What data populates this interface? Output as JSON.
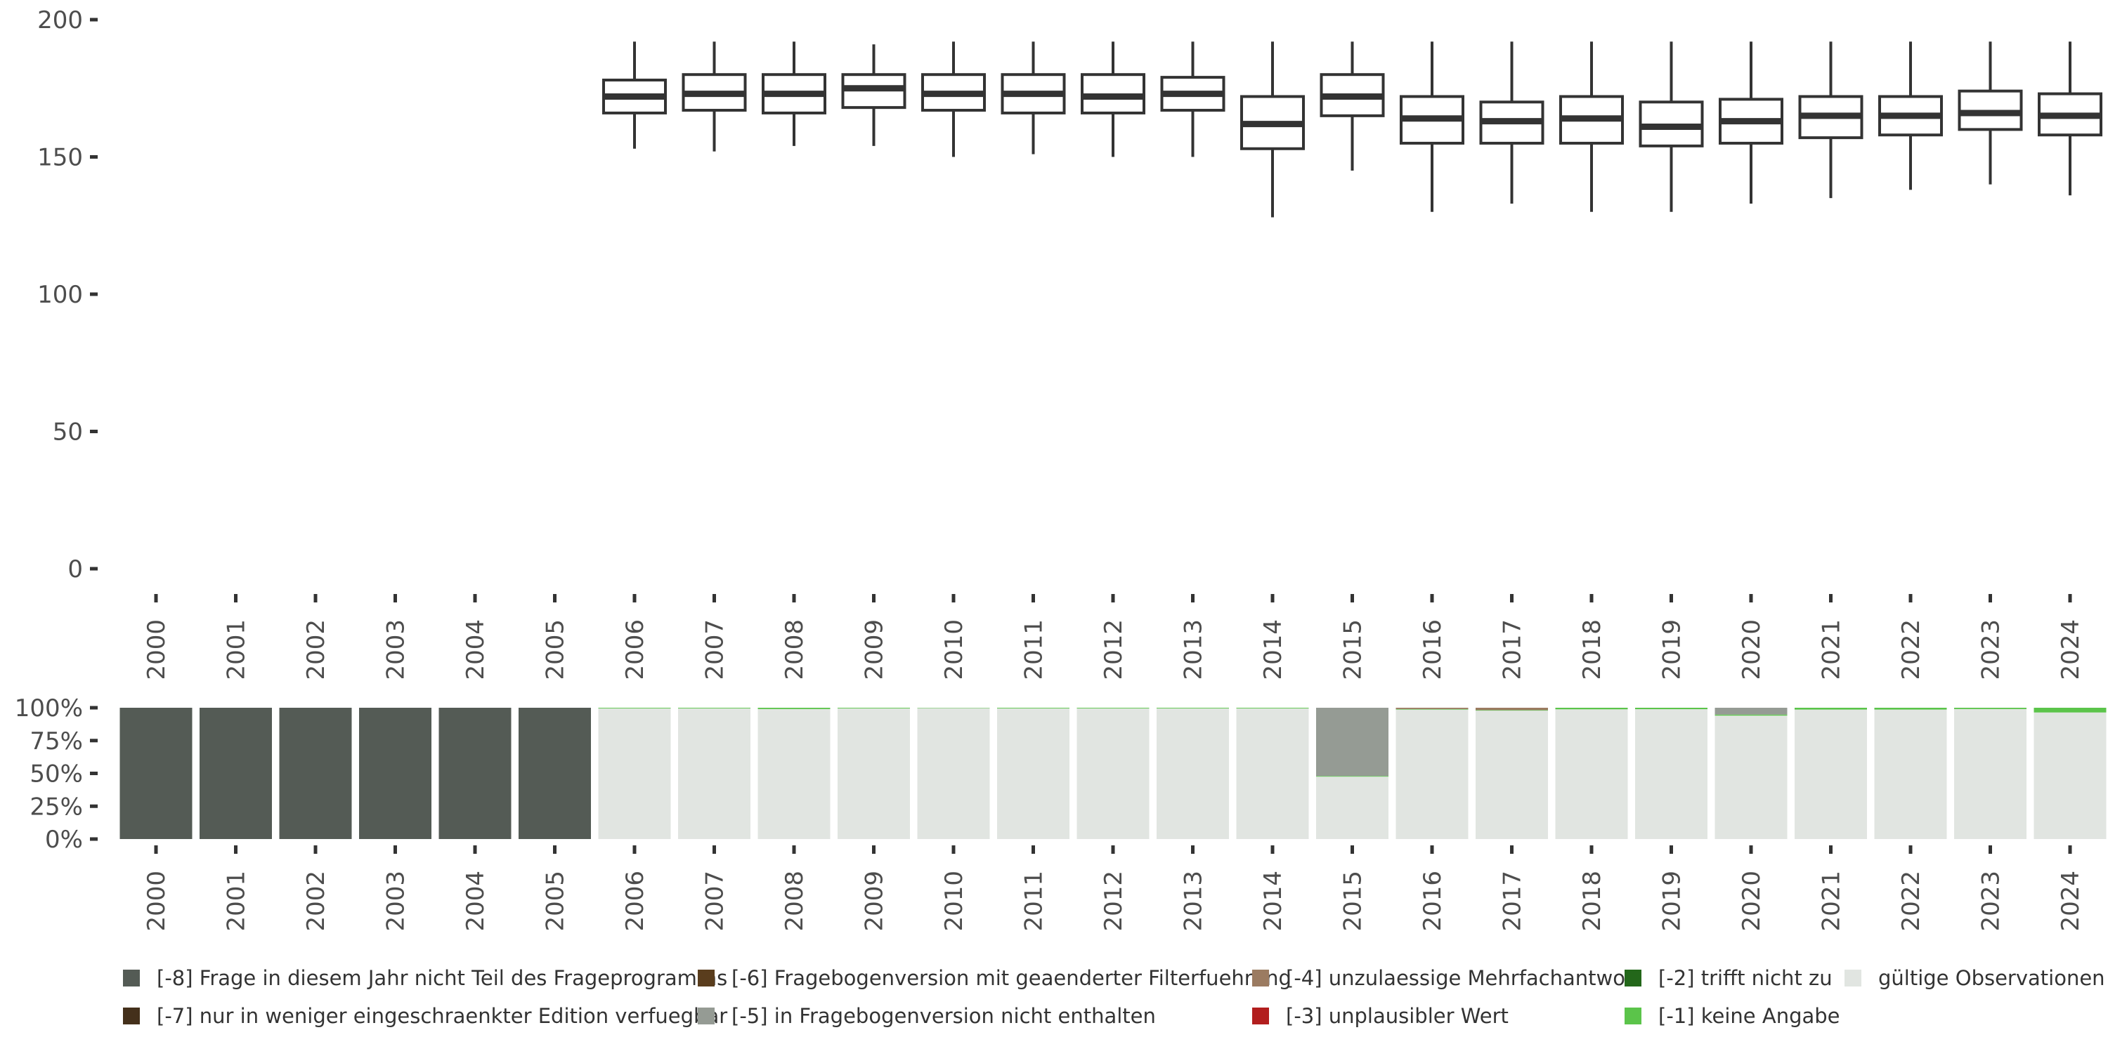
{
  "chart_data": [
    {
      "type": "boxplot",
      "title": "",
      "xlabel": "",
      "ylabel": "",
      "ylim": [
        0,
        200
      ],
      "yticks": [
        0,
        50,
        100,
        150,
        200
      ],
      "categories": [
        "2000",
        "2001",
        "2002",
        "2003",
        "2004",
        "2005",
        "2006",
        "2007",
        "2008",
        "2009",
        "2010",
        "2011",
        "2012",
        "2013",
        "2014",
        "2015",
        "2016",
        "2017",
        "2018",
        "2019",
        "2020",
        "2021",
        "2022",
        "2023",
        "2024"
      ],
      "boxes": [
        {
          "year": "2006",
          "whisker_low": 153,
          "q1": 166,
          "median": 172,
          "q3": 178,
          "whisker_high": 192
        },
        {
          "year": "2007",
          "whisker_low": 152,
          "q1": 167,
          "median": 173,
          "q3": 180,
          "whisker_high": 192
        },
        {
          "year": "2008",
          "whisker_low": 154,
          "q1": 166,
          "median": 173,
          "q3": 180,
          "whisker_high": 192
        },
        {
          "year": "2009",
          "whisker_low": 154,
          "q1": 168,
          "median": 175,
          "q3": 180,
          "whisker_high": 191
        },
        {
          "year": "2010",
          "whisker_low": 150,
          "q1": 167,
          "median": 173,
          "q3": 180,
          "whisker_high": 192
        },
        {
          "year": "2011",
          "whisker_low": 151,
          "q1": 166,
          "median": 173,
          "q3": 180,
          "whisker_high": 192
        },
        {
          "year": "2012",
          "whisker_low": 150,
          "q1": 166,
          "median": 172,
          "q3": 180,
          "whisker_high": 192
        },
        {
          "year": "2013",
          "whisker_low": 150,
          "q1": 167,
          "median": 173,
          "q3": 179,
          "whisker_high": 192
        },
        {
          "year": "2014",
          "whisker_low": 128,
          "q1": 153,
          "median": 162,
          "q3": 172,
          "whisker_high": 192
        },
        {
          "year": "2015",
          "whisker_low": 145,
          "q1": 165,
          "median": 172,
          "q3": 180,
          "whisker_high": 192
        },
        {
          "year": "2016",
          "whisker_low": 130,
          "q1": 155,
          "median": 164,
          "q3": 172,
          "whisker_high": 192
        },
        {
          "year": "2017",
          "whisker_low": 133,
          "q1": 155,
          "median": 163,
          "q3": 170,
          "whisker_high": 192
        },
        {
          "year": "2018",
          "whisker_low": 130,
          "q1": 155,
          "median": 164,
          "q3": 172,
          "whisker_high": 192
        },
        {
          "year": "2019",
          "whisker_low": 130,
          "q1": 154,
          "median": 161,
          "q3": 170,
          "whisker_high": 192
        },
        {
          "year": "2020",
          "whisker_low": 133,
          "q1": 155,
          "median": 163,
          "q3": 171,
          "whisker_high": 192
        },
        {
          "year": "2021",
          "whisker_low": 135,
          "q1": 157,
          "median": 165,
          "q3": 172,
          "whisker_high": 192
        },
        {
          "year": "2022",
          "whisker_low": 138,
          "q1": 158,
          "median": 165,
          "q3": 172,
          "whisker_high": 192
        },
        {
          "year": "2023",
          "whisker_low": 140,
          "q1": 160,
          "median": 166,
          "q3": 174,
          "whisker_high": 192
        },
        {
          "year": "2024",
          "whisker_low": 136,
          "q1": 158,
          "median": 165,
          "q3": 173,
          "whisker_high": 192
        }
      ]
    },
    {
      "type": "stacked_bar",
      "title": "",
      "xlabel": "",
      "ylabel": "",
      "ylim": [
        0,
        100
      ],
      "yticks": [
        "0%",
        "25%",
        "50%",
        "75%",
        "100%"
      ],
      "categories": [
        "2000",
        "2001",
        "2002",
        "2003",
        "2004",
        "2005",
        "2006",
        "2007",
        "2008",
        "2009",
        "2010",
        "2011",
        "2012",
        "2013",
        "2014",
        "2015",
        "2016",
        "2017",
        "2018",
        "2019",
        "2020",
        "2021",
        "2022",
        "2023",
        "2024"
      ],
      "series": [
        {
          "name": "gültige Observationen",
          "color": "#e1e5e1",
          "values": [
            0,
            0,
            0,
            0,
            0,
            0,
            99.5,
            99.5,
            99,
            99.5,
            99.8,
            99.5,
            99.5,
            99.5,
            99.5,
            47.5,
            98.6,
            97.8,
            98.8,
            98.9,
            94,
            98.6,
            98.6,
            99,
            96.4
          ]
        },
        {
          "name": "[-1] keine Angabe",
          "color": "#5bc44a",
          "values": [
            0,
            0,
            0,
            0,
            0,
            0,
            0.5,
            0.5,
            1,
            0.5,
            0.2,
            0.5,
            0.5,
            0.5,
            0.5,
            0.5,
            0.4,
            0.4,
            1.2,
            1.1,
            0.8,
            1.4,
            1.4,
            1,
            3.6
          ]
        },
        {
          "name": "[-5] in Fragebogenversion nicht enthalten",
          "color": "#959b94",
          "values": [
            0,
            0,
            0,
            0,
            0,
            0,
            0,
            0,
            0,
            0,
            0,
            0,
            0,
            0,
            0,
            52,
            0,
            0,
            0,
            0,
            5.2,
            0,
            0,
            0,
            0
          ]
        },
        {
          "name": "[-4] unzulaessige Mehrfachantwort",
          "color": "#9b7b61",
          "values": [
            0,
            0,
            0,
            0,
            0,
            0,
            0,
            0,
            0,
            0,
            0,
            0,
            0,
            0,
            0,
            0,
            1,
            1.8,
            0,
            0,
            0,
            0,
            0,
            0,
            0
          ]
        },
        {
          "name": "[-8] Frage in diesem Jahr nicht Teil des Frageprogramms",
          "color": "#545b55",
          "values": [
            100,
            100,
            100,
            100,
            100,
            100,
            0,
            0,
            0,
            0,
            0,
            0,
            0,
            0,
            0,
            0,
            0,
            0,
            0,
            0,
            0,
            0,
            0,
            0,
            0
          ]
        }
      ]
    }
  ],
  "legend": {
    "items": [
      {
        "label": "[-8] Frage in diesem Jahr nicht Teil des Frageprogramms",
        "color": "#545b55"
      },
      {
        "label": "[-6] Fragebogenversion mit geaenderter Filterfuehrung",
        "color": "#5a3d1d"
      },
      {
        "label": "[-4] unzulaessige Mehrfachantwort",
        "color": "#9b7b61"
      },
      {
        "label": "[-2] trifft nicht zu",
        "color": "#23671a"
      },
      {
        "label": "gültige Observationen",
        "color": "#e1e5e1"
      },
      {
        "label": "[-7] nur in weniger eingeschraenkter Edition verfuegbar",
        "color": "#44301b"
      },
      {
        "label": "[-5] in Fragebogenversion nicht enthalten",
        "color": "#959b94"
      },
      {
        "label": "[-3] unplausibler Wert",
        "color": "#b21e1e"
      },
      {
        "label": "[-1] keine Angabe",
        "color": "#5bc44a"
      }
    ]
  }
}
